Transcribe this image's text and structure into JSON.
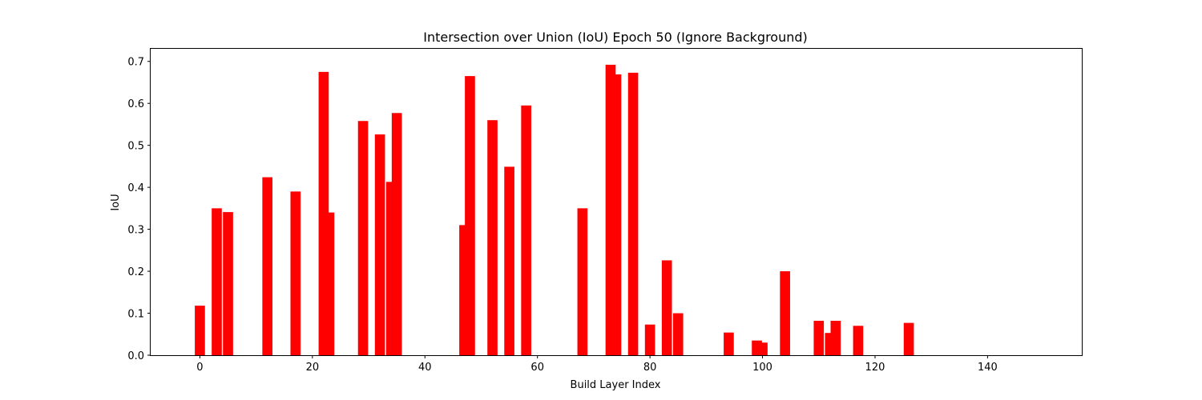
{
  "chart_data": {
    "type": "bar",
    "title": "Intersection over Union (IoU) Epoch 50 (Ignore Background)",
    "xlabel": "Build Layer Index",
    "ylabel": "IoU",
    "xlim": [
      -8.75,
      156.75
    ],
    "ylim": [
      0,
      0.73
    ],
    "xticks": [
      0,
      20,
      40,
      60,
      80,
      100,
      120,
      140
    ],
    "yticks": [
      0.0,
      0.1,
      0.2,
      0.3,
      0.4,
      0.5,
      0.6,
      0.7
    ],
    "ytick_labels": [
      "0.0",
      "0.1",
      "0.2",
      "0.3",
      "0.4",
      "0.5",
      "0.6",
      "0.7"
    ],
    "bar_color": "#ff0000",
    "grid": false,
    "x": [
      0,
      3,
      5,
      12,
      17,
      22,
      23,
      29,
      32,
      34,
      35,
      47,
      48,
      52,
      55,
      58,
      68,
      73,
      74,
      77,
      80,
      83,
      85,
      94,
      99,
      100,
      104,
      110,
      112,
      113,
      117,
      126
    ],
    "values": [
      0.118,
      0.35,
      0.341,
      0.424,
      0.39,
      0.675,
      0.34,
      0.558,
      0.526,
      0.413,
      0.577,
      0.31,
      0.665,
      0.56,
      0.449,
      0.595,
      0.35,
      0.692,
      0.669,
      0.673,
      0.073,
      0.226,
      0.1,
      0.054,
      0.035,
      0.03,
      0.2,
      0.082,
      0.053,
      0.082,
      0.07,
      0.077
    ]
  }
}
